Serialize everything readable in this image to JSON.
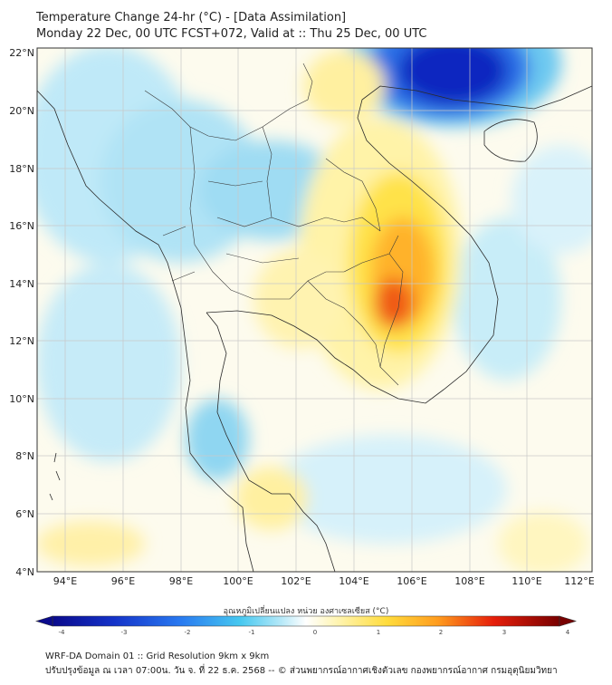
{
  "header": {
    "title_line1": "Temperature Change 24-hr (°C) - [Data Assimilation]",
    "title_line2": "Monday 22 Dec, 00 UTC FCST+072, Valid at :: Thu 25 Dec, 00 UTC"
  },
  "map": {
    "lat_labels": [
      "4°N",
      "6°N",
      "8°N",
      "10°N",
      "12°N",
      "14°N",
      "16°N",
      "18°N",
      "20°N",
      "22°N"
    ],
    "lon_labels": [
      "94°E",
      "96°E",
      "98°E",
      "100°E",
      "102°E",
      "104°E",
      "106°E",
      "108°E",
      "110°E",
      "112°E"
    ]
  },
  "colorbar": {
    "label": "อุณหภูมิเปลี่ยนแปลง หน่วย องศาเซลเซียส (°C)",
    "ticks": [
      "-4",
      "-3",
      "-2",
      "-1",
      "0",
      "1",
      "2",
      "3",
      "4"
    ],
    "colors": {
      "deep_blue": "#0a0a8c",
      "blue": "#1e50e6",
      "cyan": "#46c8f0",
      "pale_cyan": "#c8eef8",
      "white": "#ffffff",
      "pale_yellow": "#fff5b4",
      "yellow": "#ffdc3c",
      "orange": "#ff8c1e",
      "red": "#e61e0a",
      "dark_red": "#780000"
    }
  },
  "footer": {
    "line1": "WRF-DA Domain 01 :: Grid Resolution 9km x 9km",
    "line2": "ปรับปรุงข้อมูล ณ เวลา 07:00น. วัน จ. ที่ 22 ธ.ค. 2568 -- © ส่วนพยากรณ์อากาศเชิงตัวเลข กองพยากรณ์อากาศ กรมอุตุนิยมวิทยา"
  }
}
